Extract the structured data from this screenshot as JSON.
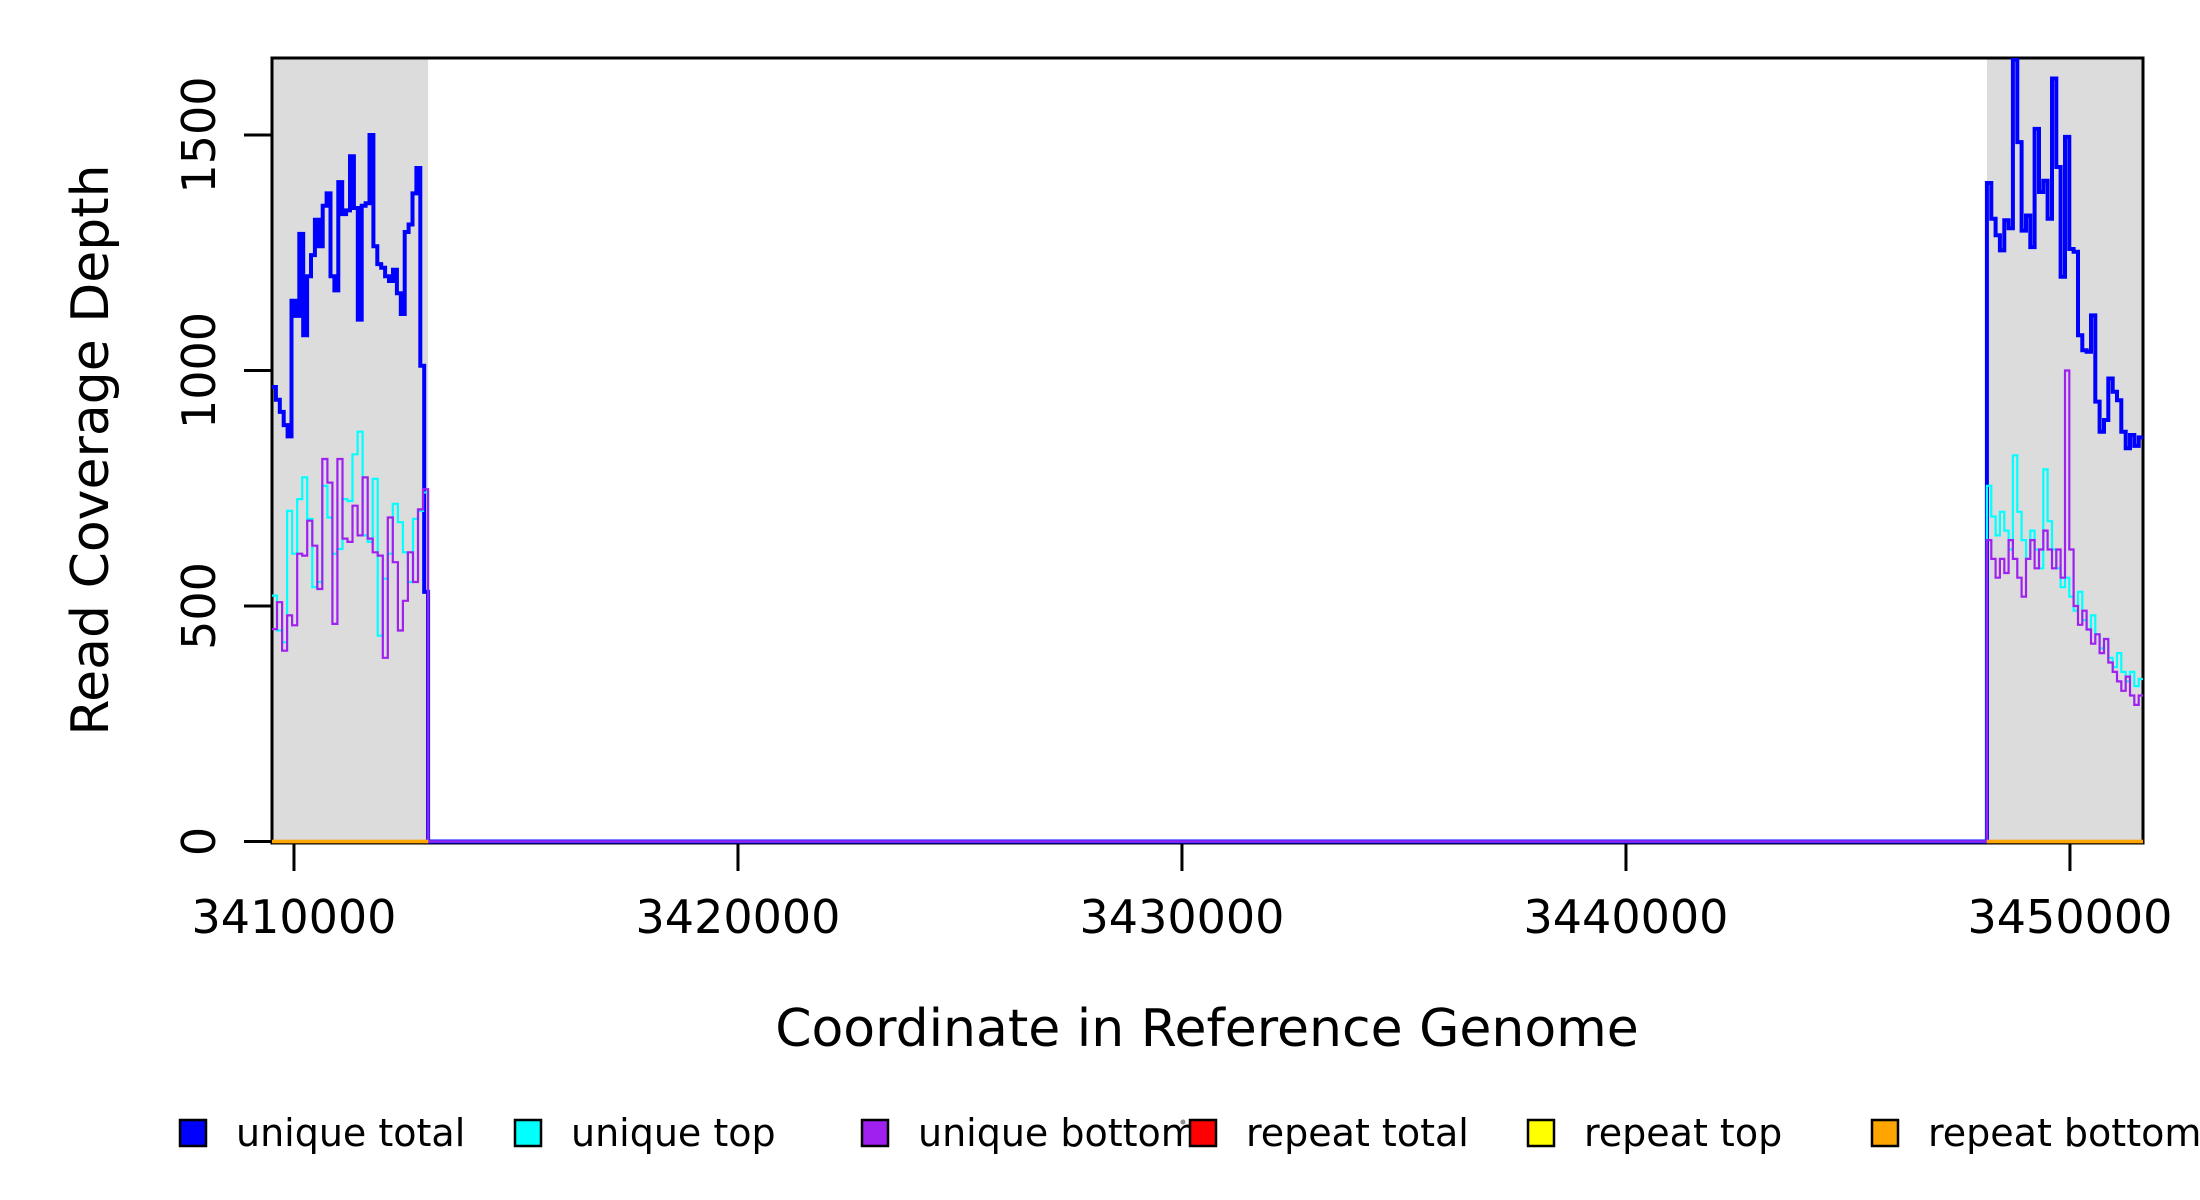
{
  "chart_data": {
    "type": "line",
    "subtype": "step-coverage-plot",
    "title": "",
    "xlabel": "Coordinate in Reference Genome",
    "ylabel": "Read Coverage Depth",
    "x_domain": [
      3409505,
      3451645
    ],
    "y_domain": [
      0,
      1663
    ],
    "grid": false,
    "background_color": "#ffffff",
    "box_color": "#000000",
    "shaded_region_color": "#dcdcdc",
    "shaded_regions": [
      {
        "start": 3409505,
        "end": 3413020
      },
      {
        "start": 3448130,
        "end": 3451645
      }
    ],
    "x_ticks": {
      "values": [
        3410000,
        3420000,
        3430000,
        3440000,
        3450000
      ],
      "labels": [
        "3410000",
        "3420000",
        "3430000",
        "3440000",
        "3450000"
      ]
    },
    "y_ticks": {
      "values": [
        0,
        500,
        1000,
        1500
      ],
      "labels": [
        "0",
        "500",
        "1000",
        "1500"
      ]
    },
    "series": [
      {
        "name": "unique total",
        "color": "#0000ff",
        "width": 4,
        "zero_between": true,
        "regions": [
          {
            "start": 3409505,
            "end": 3413020,
            "values": [
              965,
              938,
              912,
              884,
              860,
              1148,
              1116,
              1290,
              1075,
              1200,
              1245,
              1320,
              1264,
              1350,
              1376,
              1200,
              1170,
              1400,
              1332,
              1340,
              1455,
              1345,
              1108,
              1350,
              1355,
              1500,
              1264,
              1226,
              1218,
              1200,
              1190,
              1214,
              1164,
              1120,
              1294,
              1310,
              1376,
              1430,
              1010,
              530
            ]
          },
          {
            "start": 3448130,
            "end": 3451645,
            "values": [
              1398,
              1322,
              1287,
              1255,
              1319,
              1302,
              1660,
              1485,
              1297,
              1329,
              1262,
              1513,
              1379,
              1403,
              1322,
              1620,
              1432,
              1199,
              1496,
              1258,
              1252,
              1075,
              1043,
              1040,
              1117,
              934,
              870,
              895,
              983,
              955,
              937,
              870,
              835,
              863,
              840,
              858
            ]
          }
        ]
      },
      {
        "name": "unique top",
        "color": "#00ffff",
        "width": 2.2,
        "zero_between": true,
        "regions": [
          {
            "start": 3409505,
            "end": 3413020,
            "values": [
              522,
              448,
              423,
              702,
              611,
              727,
              773,
              685,
              540,
              551,
              755,
              688,
              611,
              621,
              727,
              723,
              822,
              870,
              650,
              636,
              770,
              437,
              558,
              611,
              717,
              678,
              614,
              551,
              685,
              702,
              741
            ]
          },
          {
            "start": 3448130,
            "end": 3451645,
            "values": [
              755,
              690,
              650,
              700,
              660,
              620,
              820,
              700,
              640,
              600,
              660,
              620,
              580,
              790,
              680,
              620,
              580,
              540,
              560,
              520,
              490,
              530,
              470,
              450,
              480,
              440,
              410,
              430,
              390,
              370,
              400,
              360,
              340,
              360,
              330,
              345
            ]
          }
        ]
      },
      {
        "name": "unique bottom",
        "color": "#a020f0",
        "width": 2.2,
        "zero_between": true,
        "regions": [
          {
            "start": 3409505,
            "end": 3413020,
            "values": [
              451,
              508,
              405,
              480,
              459,
              611,
              607,
              681,
              628,
              536,
              812,
              762,
              462,
              812,
              643,
              636,
              713,
              650,
              773,
              643,
              614,
              607,
              390,
              688,
              593,
              448,
              511,
              614,
              551,
              705,
              748
            ]
          },
          {
            "start": 3448130,
            "end": 3451645,
            "values": [
              640,
              600,
              560,
              600,
              570,
              640,
              600,
              560,
              520,
              600,
              640,
              580,
              620,
              660,
              620,
              580,
              620,
              560,
              1000,
              620,
              500,
              460,
              490,
              450,
              420,
              440,
              400,
              430,
              380,
              360,
              340,
              320,
              350,
              310,
              290,
              310
            ]
          }
        ]
      },
      {
        "name": "repeat total",
        "color": "#ff0000",
        "width": 3.2,
        "zero_between": false,
        "regions": [
          {
            "start": 3409505,
            "end": 3413020,
            "values": [
              0,
              0
            ]
          },
          {
            "start": 3448130,
            "end": 3451645,
            "values": [
              0,
              0
            ]
          }
        ]
      },
      {
        "name": "repeat top",
        "color": "#ffff00",
        "width": 3.2,
        "zero_between": false,
        "regions": [
          {
            "start": 3409505,
            "end": 3413020,
            "values": [
              0,
              0
            ]
          },
          {
            "start": 3448130,
            "end": 3451645,
            "values": [
              0,
              0
            ]
          }
        ]
      },
      {
        "name": "repeat bottom",
        "color": "#ffa500",
        "width": 3.2,
        "zero_between": false,
        "regions": [
          {
            "start": 3409505,
            "end": 3413020,
            "values": [
              0,
              0
            ]
          },
          {
            "start": 3448130,
            "end": 3451645,
            "values": [
              0,
              0
            ]
          }
        ]
      }
    ],
    "legend": {
      "position": "bottom",
      "marker_border_color": "#000000",
      "items": [
        {
          "label": "unique total",
          "color": "#0000ff"
        },
        {
          "label": "unique top",
          "color": "#00ffff"
        },
        {
          "label": "unique bottom",
          "color": "#a020f0"
        },
        {
          "label": "repeat total",
          "color": "#ff0000"
        },
        {
          "label": "repeat top",
          "color": "#ffff00"
        },
        {
          "label": "repeat bottom",
          "color": "#ffa500"
        }
      ]
    }
  }
}
